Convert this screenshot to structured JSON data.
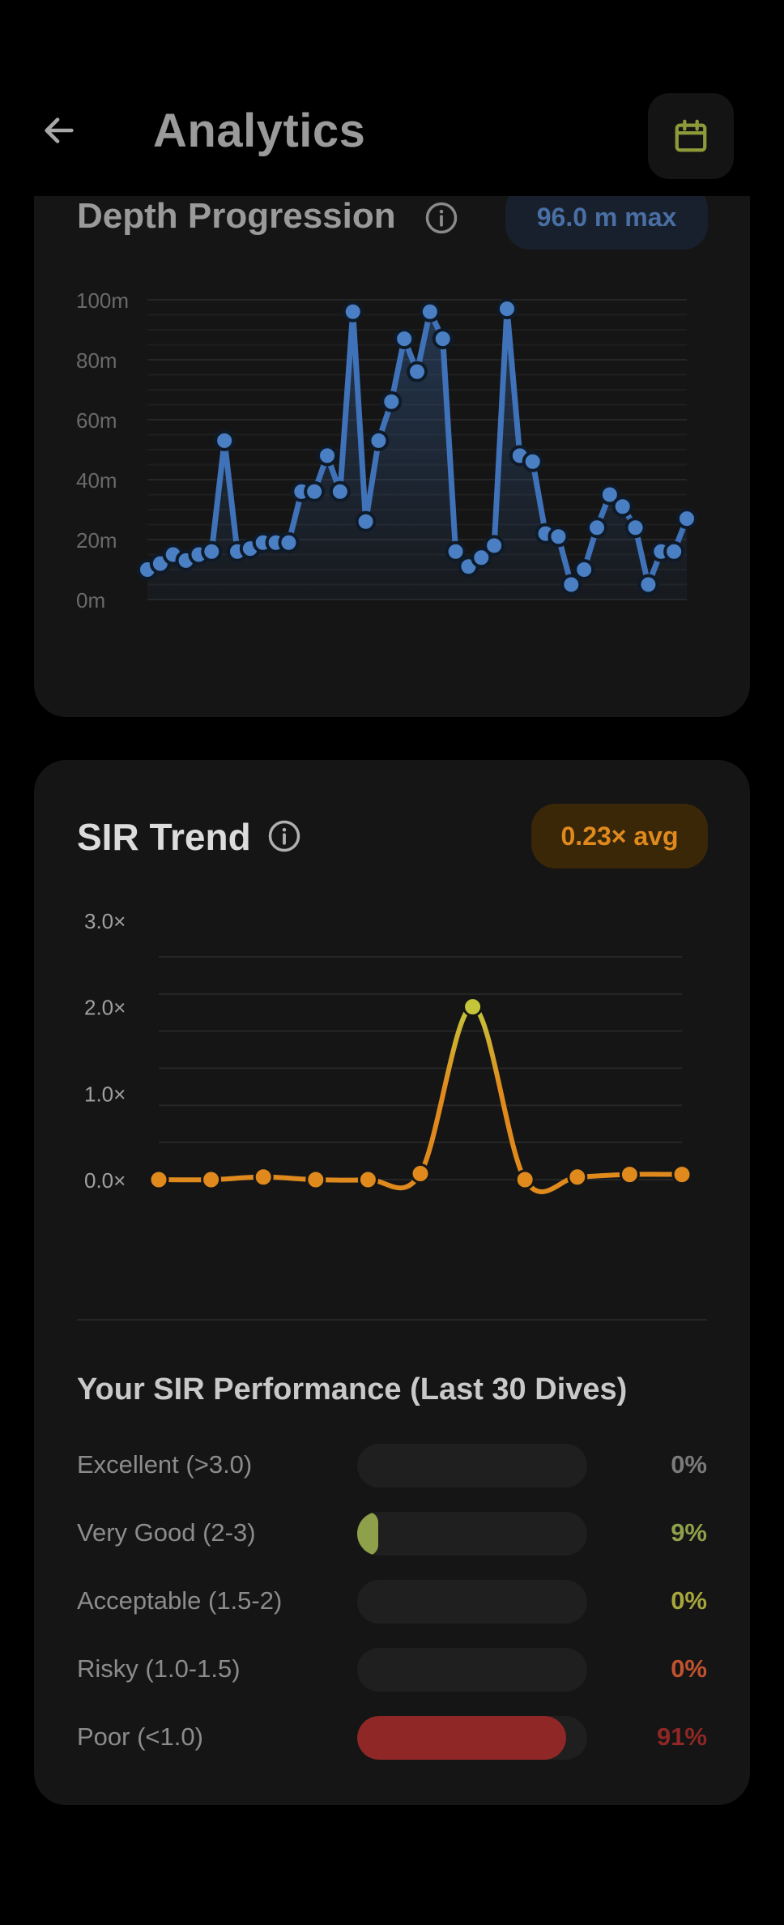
{
  "header": {
    "title": "Analytics",
    "back_icon": "arrow-left-icon",
    "calendar_icon": "calendar-icon",
    "calendar_color": "#8f9a3a"
  },
  "depth_card": {
    "title": "Depth Progression",
    "badge": "96.0 m max",
    "badge_color": "#4a6fa5",
    "line_color": "#3f72b8"
  },
  "sir_card": {
    "title": "SIR Trend",
    "badge": "0.23× avg",
    "badge_color": "#e08a1e",
    "line_color": "#e08a1e",
    "peak_color": "#c5c53a"
  },
  "chart_data": [
    {
      "type": "line",
      "y_ticks": [
        "0m",
        "20m",
        "40m",
        "60m",
        "80m",
        "100m"
      ],
      "ylim": [
        0,
        100
      ],
      "grid": true,
      "series": [
        {
          "values": [
            10,
            12,
            15,
            13,
            15,
            16,
            53,
            16,
            17,
            19,
            19,
            19,
            36,
            36,
            48,
            36,
            96,
            26,
            53,
            66,
            87,
            76,
            96,
            87,
            16,
            11,
            14,
            18,
            97,
            48,
            46,
            22,
            21,
            5,
            10,
            24,
            35,
            31,
            24,
            5,
            16,
            16,
            27
          ]
        }
      ]
    },
    {
      "type": "line",
      "y_ticks": [
        "0.0×",
        "1.0×",
        "2.0×",
        "3.0×"
      ],
      "ylim": [
        0,
        3
      ],
      "grid": true,
      "series": [
        {
          "values": [
            0.0,
            0.0,
            0.03,
            0.0,
            0.0,
            0.07,
            2.0,
            0.0,
            0.03,
            0.06,
            0.06
          ]
        }
      ]
    }
  ],
  "performance": {
    "heading": "Your SIR Performance (Last 30 Dives)",
    "rows": [
      {
        "label": "Excellent (>3.0)",
        "pct": "0%",
        "value": 0,
        "color": "#7a7a7a"
      },
      {
        "label": "Very Good (2-3)",
        "pct": "9%",
        "value": 9,
        "color": "#8fa04a"
      },
      {
        "label": "Acceptable (1.5-2)",
        "pct": "0%",
        "value": 0,
        "color": "#a7a63c"
      },
      {
        "label": "Risky (1.0-1.5)",
        "pct": "0%",
        "value": 0,
        "color": "#c0522e"
      },
      {
        "label": "Poor (<1.0)",
        "pct": "91%",
        "value": 91,
        "color": "#8e2725"
      }
    ]
  }
}
